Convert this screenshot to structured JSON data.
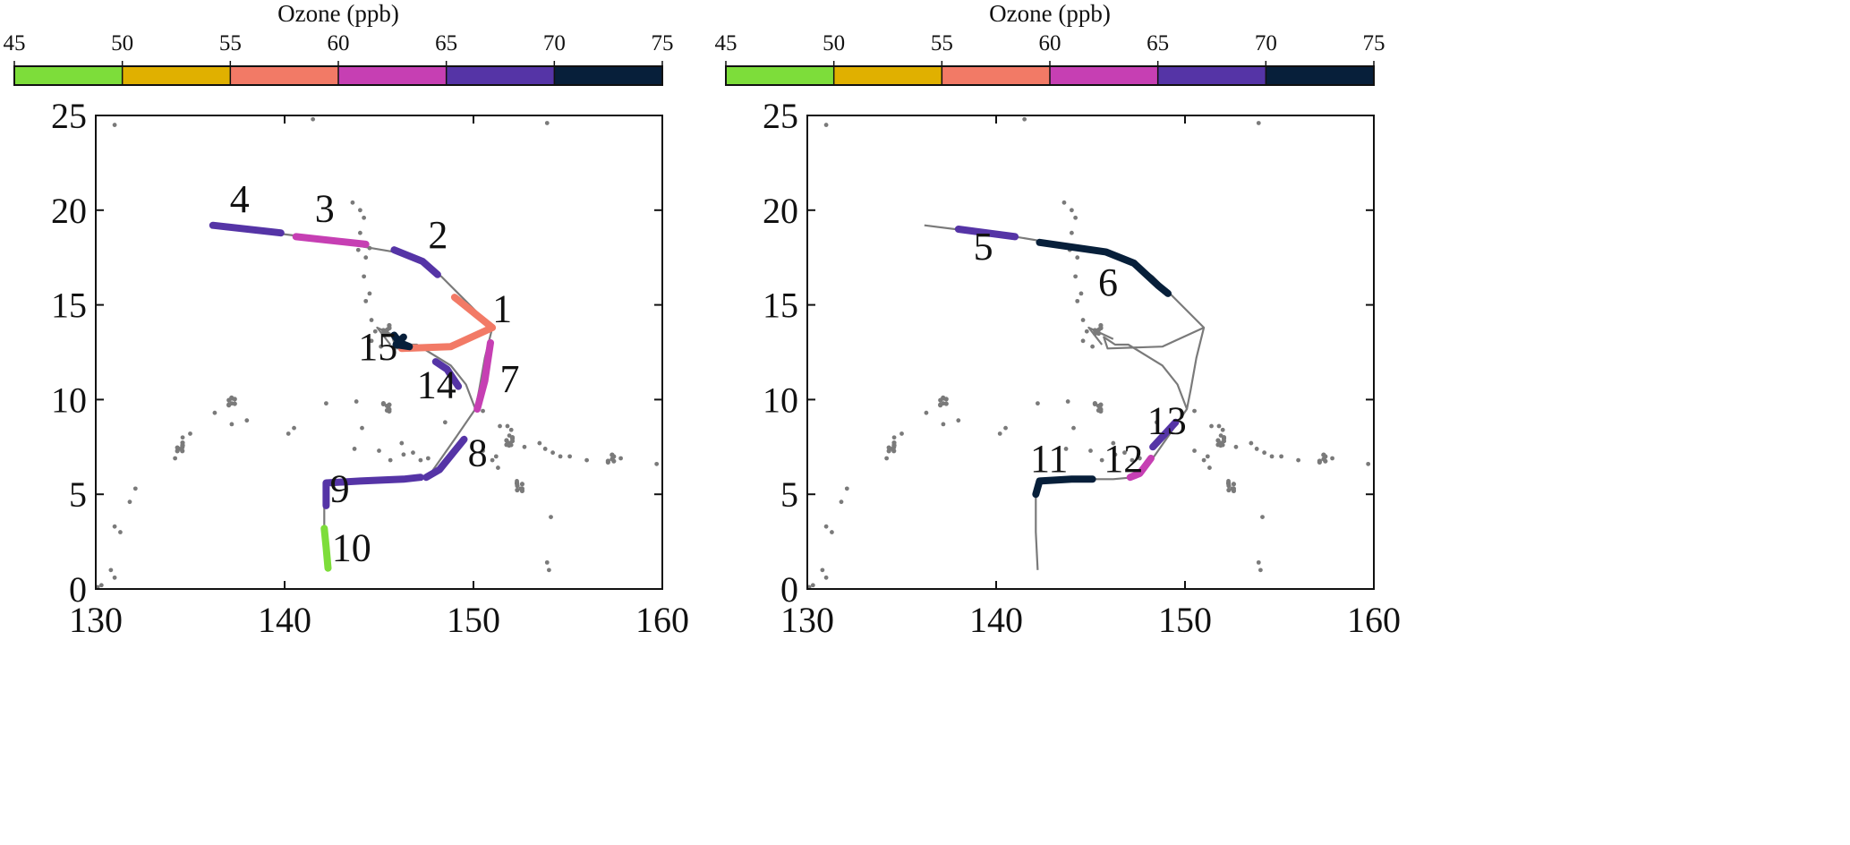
{
  "chart_data": [
    {
      "type": "line",
      "panel": "left",
      "colorbar": {
        "title": "Ozone (ppb)",
        "ticks": [
          45,
          50,
          55,
          60,
          65,
          70,
          75
        ],
        "colors": [
          "#7ddd3a",
          "#e0b000",
          "#f27a66",
          "#c63fb3",
          "#5534a6",
          "#071f3a"
        ]
      },
      "xlim": [
        130,
        160
      ],
      "ylim": [
        0,
        25
      ],
      "xticks": [
        130,
        140,
        150,
        160
      ],
      "yticks": [
        0,
        5,
        10,
        15,
        20,
        25
      ],
      "track_color": "#7a7a7a",
      "track": [
        [
          136.2,
          19.2
        ],
        [
          141,
          18.6
        ],
        [
          145.8,
          17.8
        ],
        [
          147.3,
          17.2
        ],
        [
          148.3,
          16.5
        ],
        [
          149.8,
          15.0
        ],
        [
          151.0,
          13.8
        ],
        [
          150.6,
          12.2
        ],
        [
          150.3,
          10.5
        ],
        [
          150.1,
          9.5
        ],
        [
          149.0,
          7.9
        ],
        [
          147.8,
          6.2
        ],
        [
          147.3,
          5.9
        ],
        [
          146.2,
          5.8
        ],
        [
          144.4,
          5.8
        ],
        [
          142.3,
          5.7
        ],
        [
          142.1,
          5.0
        ],
        [
          142.1,
          3.0
        ],
        [
          142.2,
          1.0
        ]
      ],
      "extra_paths": [
        [
          [
            151.0,
            13.8
          ],
          [
            148.8,
            12.8
          ],
          [
            145.9,
            12.7
          ],
          [
            145.7,
            13.3
          ],
          [
            146.3,
            12.9
          ],
          [
            147.0,
            12.9
          ],
          [
            148.8,
            11.8
          ],
          [
            149.6,
            10.8
          ],
          [
            150.1,
            9.5
          ]
        ],
        [
          [
            146.2,
            13.2
          ],
          [
            144.9,
            13.8
          ],
          [
            145.6,
            12.9
          ]
        ]
      ],
      "segments": [
        {
          "label": "1",
          "ozone": 57,
          "points": [
            [
              149.0,
              15.4
            ],
            [
              151.0,
              13.8
            ],
            [
              148.8,
              12.8
            ],
            [
              146.2,
              12.7
            ]
          ],
          "label_pos": [
            151.0,
            14.1
          ]
        },
        {
          "label": "2",
          "ozone": 67,
          "points": [
            [
              145.8,
              17.9
            ],
            [
              147.3,
              17.3
            ],
            [
              148.1,
              16.6
            ]
          ],
          "label_pos": [
            147.6,
            18.0
          ]
        },
        {
          "label": "3",
          "ozone": 63,
          "points": [
            [
              140.6,
              18.6
            ],
            [
              144.3,
              18.2
            ]
          ],
          "label_pos": [
            141.6,
            19.4
          ]
        },
        {
          "label": "4",
          "ozone": 67,
          "points": [
            [
              136.2,
              19.2
            ],
            [
              139.8,
              18.8
            ]
          ],
          "label_pos": [
            137.1,
            19.9
          ]
        },
        {
          "label": "7",
          "ozone": 63,
          "points": [
            [
              150.9,
              13.0
            ],
            [
              150.6,
              11.0
            ],
            [
              150.2,
              9.5
            ]
          ],
          "label_pos": [
            151.4,
            10.4
          ]
        },
        {
          "label": "8",
          "ozone": 67,
          "points": [
            [
              149.5,
              7.9
            ],
            [
              148.2,
              6.3
            ],
            [
              147.5,
              5.9
            ]
          ],
          "label_pos": [
            149.7,
            6.5
          ]
        },
        {
          "label": "9",
          "ozone": 67,
          "points": [
            [
              142.2,
              4.4
            ],
            [
              142.2,
              5.6
            ],
            [
              144.0,
              5.7
            ],
            [
              146.3,
              5.8
            ],
            [
              147.2,
              5.9
            ]
          ],
          "label_pos": [
            142.4,
            4.6
          ]
        },
        {
          "label": "10",
          "ozone": 47,
          "points": [
            [
              142.1,
              3.2
            ],
            [
              142.2,
              2.2
            ],
            [
              142.3,
              1.1
            ]
          ],
          "label_pos": [
            142.5,
            1.5
          ]
        },
        {
          "label": "14",
          "ozone": 67,
          "points": [
            [
              148.0,
              12.0
            ],
            [
              148.6,
              11.6
            ],
            [
              149.2,
              10.7
            ]
          ],
          "label_pos": [
            147.0,
            10.1
          ]
        },
        {
          "label": "15",
          "ozone": 72,
          "points": [
            [
              145.8,
              13.4
            ],
            [
              146.1,
              13.0
            ],
            [
              146.6,
              12.8
            ],
            [
              145.9,
              12.9
            ],
            [
              146.3,
              13.3
            ]
          ],
          "label_pos": [
            143.9,
            12.1
          ]
        }
      ],
      "scatter": [
        [
          131.0,
          24.5
        ],
        [
          141.5,
          24.8
        ],
        [
          153.9,
          24.6
        ],
        [
          143.6,
          20.4
        ],
        [
          144.0,
          20.0
        ],
        [
          144.2,
          19.6
        ],
        [
          144.0,
          18.8
        ],
        [
          143.9,
          17.9
        ],
        [
          144.5,
          18.0
        ],
        [
          144.3,
          17.5
        ],
        [
          144.2,
          16.5
        ],
        [
          144.5,
          15.6
        ],
        [
          144.3,
          15.2
        ],
        [
          144.6,
          14.2
        ],
        [
          144.8,
          13.6
        ],
        [
          144.6,
          13.1
        ],
        [
          145.1,
          12.8
        ],
        [
          150.5,
          9.4
        ],
        [
          148.5,
          8.8
        ],
        [
          151.4,
          8.6
        ],
        [
          151.8,
          8.6
        ],
        [
          152.0,
          8.4
        ],
        [
          151.9,
          8.1
        ],
        [
          137.2,
          9.8
        ],
        [
          136.3,
          9.3
        ],
        [
          138.0,
          8.9
        ],
        [
          137.2,
          8.7
        ],
        [
          140.5,
          8.5
        ],
        [
          140.2,
          8.2
        ],
        [
          134.6,
          8.0
        ],
        [
          134.4,
          7.4
        ],
        [
          134.2,
          6.9
        ],
        [
          135.0,
          8.2
        ],
        [
          132.1,
          5.3
        ],
        [
          131.8,
          4.6
        ],
        [
          131.0,
          3.3
        ],
        [
          131.3,
          3.0
        ],
        [
          130.8,
          1.0
        ],
        [
          131.0,
          0.6
        ],
        [
          130.3,
          0.2
        ],
        [
          130.1,
          0.1
        ],
        [
          144.1,
          8.5
        ],
        [
          145.0,
          7.3
        ],
        [
          146.3,
          7.1
        ],
        [
          146.8,
          7.2
        ],
        [
          147.2,
          6.8
        ],
        [
          147.6,
          6.9
        ],
        [
          145.6,
          6.8
        ],
        [
          150.5,
          7.3
        ],
        [
          151.2,
          7.0
        ],
        [
          152.0,
          7.6
        ],
        [
          152.7,
          7.5
        ],
        [
          153.5,
          7.7
        ],
        [
          153.8,
          7.4
        ],
        [
          151.3,
          6.4
        ],
        [
          152.3,
          5.7
        ],
        [
          152.5,
          5.3
        ],
        [
          154.2,
          7.2
        ],
        [
          154.6,
          7.0
        ],
        [
          155.1,
          7.0
        ],
        [
          156.0,
          6.8
        ],
        [
          157.8,
          6.9
        ],
        [
          159.7,
          6.6
        ],
        [
          154.1,
          3.8
        ],
        [
          153.9,
          1.4
        ],
        [
          154.0,
          1.0
        ],
        [
          143.7,
          7.4
        ],
        [
          146.2,
          7.7
        ],
        [
          142.2,
          9.8
        ],
        [
          143.8,
          9.9
        ],
        [
          145.5,
          9.6
        ],
        [
          151.0,
          6.8
        ]
      ],
      "scatter_clusters": [
        [
          145.4,
          13.7
        ],
        [
          151.9,
          7.8
        ],
        [
          152.4,
          5.4
        ],
        [
          157.3,
          6.9
        ],
        [
          134.5,
          7.5
        ],
        [
          137.2,
          9.9
        ],
        [
          145.4,
          9.6
        ]
      ]
    },
    {
      "type": "line",
      "panel": "right",
      "colorbar": {
        "title": "Ozone (ppb)",
        "ticks": [
          45,
          50,
          55,
          60,
          65,
          70,
          75
        ],
        "colors": [
          "#7ddd3a",
          "#e0b000",
          "#f27a66",
          "#c63fb3",
          "#5534a6",
          "#071f3a"
        ]
      },
      "xlim": [
        130,
        160
      ],
      "ylim": [
        0,
        25
      ],
      "xticks": [
        130,
        140,
        150,
        160
      ],
      "yticks": [
        0,
        5,
        10,
        15,
        20,
        25
      ],
      "track_color": "#7a7a7a",
      "track": [
        [
          136.2,
          19.2
        ],
        [
          141,
          18.6
        ],
        [
          145.8,
          17.8
        ],
        [
          147.3,
          17.2
        ],
        [
          148.3,
          16.5
        ],
        [
          149.8,
          15.0
        ],
        [
          151.0,
          13.8
        ],
        [
          150.6,
          12.2
        ],
        [
          150.3,
          10.5
        ],
        [
          150.1,
          9.5
        ],
        [
          149.0,
          7.9
        ],
        [
          147.8,
          6.2
        ],
        [
          147.3,
          5.9
        ],
        [
          146.2,
          5.8
        ],
        [
          144.4,
          5.8
        ],
        [
          142.3,
          5.7
        ],
        [
          142.1,
          5.0
        ],
        [
          142.1,
          3.0
        ],
        [
          142.2,
          1.0
        ]
      ],
      "extra_paths": [
        [
          [
            151.0,
            13.8
          ],
          [
            148.8,
            12.8
          ],
          [
            145.9,
            12.7
          ],
          [
            145.7,
            13.3
          ],
          [
            146.3,
            12.9
          ],
          [
            147.0,
            12.9
          ],
          [
            148.8,
            11.8
          ],
          [
            149.6,
            10.8
          ],
          [
            150.1,
            9.5
          ]
        ],
        [
          [
            146.2,
            13.2
          ],
          [
            144.9,
            13.8
          ],
          [
            145.6,
            12.9
          ]
        ]
      ],
      "segments": [
        {
          "label": "5",
          "ozone": 67,
          "points": [
            [
              138.0,
              19.0
            ],
            [
              141.0,
              18.6
            ]
          ],
          "label_pos": [
            138.8,
            17.4
          ]
        },
        {
          "label": "6",
          "ozone": 72,
          "points": [
            [
              142.3,
              18.3
            ],
            [
              145.8,
              17.8
            ],
            [
              147.3,
              17.2
            ],
            [
              148.6,
              16.0
            ],
            [
              149.1,
              15.6
            ]
          ],
          "label_pos": [
            145.4,
            15.5
          ]
        },
        {
          "label": "11",
          "ozone": 72,
          "points": [
            [
              142.1,
              5.0
            ],
            [
              142.3,
              5.7
            ],
            [
              144.0,
              5.8
            ],
            [
              145.1,
              5.8
            ]
          ],
          "label_pos": [
            141.8,
            6.2
          ]
        },
        {
          "label": "12",
          "ozone": 63,
          "points": [
            [
              147.1,
              5.9
            ],
            [
              147.6,
              6.1
            ],
            [
              148.2,
              6.9
            ]
          ],
          "label_pos": [
            145.7,
            6.2
          ]
        },
        {
          "label": "13",
          "ozone": 67,
          "points": [
            [
              148.3,
              7.5
            ],
            [
              149.5,
              8.8
            ]
          ],
          "label_pos": [
            148.0,
            8.2
          ]
        }
      ],
      "scatter": [
        [
          131.0,
          24.5
        ],
        [
          141.5,
          24.8
        ],
        [
          153.9,
          24.6
        ],
        [
          143.6,
          20.4
        ],
        [
          144.0,
          20.0
        ],
        [
          144.2,
          19.6
        ],
        [
          144.0,
          18.8
        ],
        [
          143.9,
          17.9
        ],
        [
          144.5,
          18.0
        ],
        [
          144.3,
          17.5
        ],
        [
          144.2,
          16.5
        ],
        [
          144.5,
          15.6
        ],
        [
          144.3,
          15.2
        ],
        [
          144.6,
          14.2
        ],
        [
          144.8,
          13.6
        ],
        [
          144.6,
          13.1
        ],
        [
          145.1,
          12.8
        ],
        [
          150.5,
          9.4
        ],
        [
          148.5,
          8.8
        ],
        [
          151.4,
          8.6
        ],
        [
          151.8,
          8.6
        ],
        [
          152.0,
          8.4
        ],
        [
          151.9,
          8.1
        ],
        [
          137.2,
          9.8
        ],
        [
          136.3,
          9.3
        ],
        [
          138.0,
          8.9
        ],
        [
          137.2,
          8.7
        ],
        [
          140.5,
          8.5
        ],
        [
          140.2,
          8.2
        ],
        [
          134.6,
          8.0
        ],
        [
          134.4,
          7.4
        ],
        [
          134.2,
          6.9
        ],
        [
          135.0,
          8.2
        ],
        [
          132.1,
          5.3
        ],
        [
          131.8,
          4.6
        ],
        [
          131.0,
          3.3
        ],
        [
          131.3,
          3.0
        ],
        [
          130.8,
          1.0
        ],
        [
          131.0,
          0.6
        ],
        [
          130.3,
          0.2
        ],
        [
          130.1,
          0.1
        ],
        [
          144.1,
          8.5
        ],
        [
          145.0,
          7.3
        ],
        [
          146.3,
          7.1
        ],
        [
          146.8,
          7.2
        ],
        [
          147.2,
          6.8
        ],
        [
          147.6,
          6.9
        ],
        [
          145.6,
          6.8
        ],
        [
          150.5,
          7.3
        ],
        [
          151.2,
          7.0
        ],
        [
          152.0,
          7.6
        ],
        [
          152.7,
          7.5
        ],
        [
          153.5,
          7.7
        ],
        [
          153.8,
          7.4
        ],
        [
          151.3,
          6.4
        ],
        [
          152.3,
          5.7
        ],
        [
          152.5,
          5.3
        ],
        [
          154.2,
          7.2
        ],
        [
          154.6,
          7.0
        ],
        [
          155.1,
          7.0
        ],
        [
          156.0,
          6.8
        ],
        [
          157.8,
          6.9
        ],
        [
          159.7,
          6.6
        ],
        [
          154.1,
          3.8
        ],
        [
          153.9,
          1.4
        ],
        [
          154.0,
          1.0
        ],
        [
          143.7,
          7.4
        ],
        [
          146.2,
          7.7
        ],
        [
          142.2,
          9.8
        ],
        [
          143.8,
          9.9
        ],
        [
          145.5,
          9.6
        ],
        [
          151.0,
          6.8
        ]
      ],
      "scatter_clusters": [
        [
          145.4,
          13.7
        ],
        [
          151.9,
          7.8
        ],
        [
          152.4,
          5.4
        ],
        [
          157.3,
          6.9
        ],
        [
          134.5,
          7.5
        ],
        [
          137.2,
          9.9
        ],
        [
          145.4,
          9.6
        ]
      ]
    }
  ]
}
